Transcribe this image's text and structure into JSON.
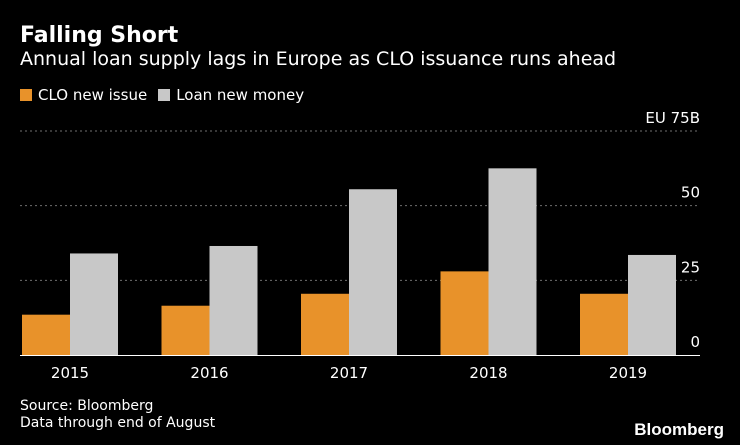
{
  "header": {
    "title": "Falling Short",
    "subtitle": "Annual loan supply lags in Europe as CLO issuance runs ahead"
  },
  "legend": {
    "items": [
      {
        "label": "CLO new issue",
        "color": "#e8922a"
      },
      {
        "label": "Loan new money",
        "color": "#c8c8c8"
      }
    ]
  },
  "chart_data": {
    "type": "bar",
    "categories": [
      "2015",
      "2016",
      "2017",
      "2018",
      "2019"
    ],
    "series": [
      {
        "name": "CLO new issue",
        "color": "#e8922a",
        "values": [
          13.5,
          16.5,
          20.5,
          28,
          20.5
        ]
      },
      {
        "name": "Loan new money",
        "color": "#c8c8c8",
        "values": [
          34,
          36.5,
          55.5,
          62.5,
          33.5
        ]
      }
    ],
    "ylim": [
      0,
      75
    ],
    "yticks": [
      {
        "value": 0,
        "label": "0"
      },
      {
        "value": 25,
        "label": "25"
      },
      {
        "value": 50,
        "label": "50"
      },
      {
        "value": 75,
        "label": "EU 75B"
      }
    ],
    "grid": true,
    "title": "Falling Short",
    "xlabel": "",
    "ylabel": ""
  },
  "footer": {
    "source": "Source: Bloomberg",
    "note": "Data through end of August",
    "brand": "Bloomberg"
  }
}
